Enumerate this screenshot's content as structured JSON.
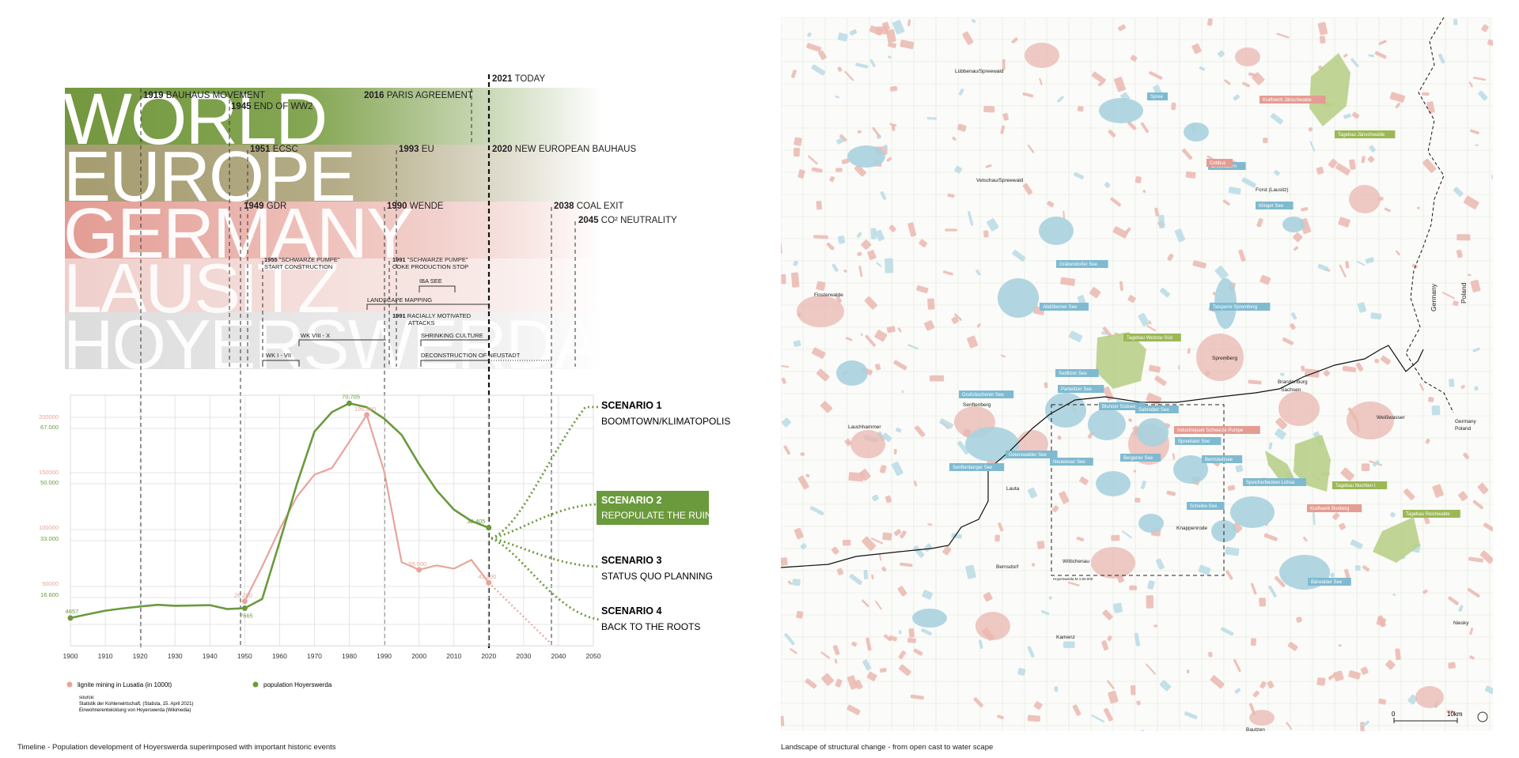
{
  "bands": [
    {
      "word": "WORLD",
      "color": "#73973f"
    },
    {
      "word": "EUROPE",
      "color": "#a59c70"
    },
    {
      "word": "GERMANY",
      "color": "#e29c93"
    },
    {
      "word": "LAUSITZ",
      "color": "#efcfcb"
    },
    {
      "word": "HOYERSWERDA",
      "color": "#dadada"
    }
  ],
  "events": [
    {
      "year": "1919",
      "label": "BAUHAUS MOVEMENT"
    },
    {
      "year": "1945",
      "label": "END OF WW2"
    },
    {
      "year": "2016",
      "label": "PARIS AGREEMENT"
    },
    {
      "year": "2021",
      "label": "TODAY"
    },
    {
      "year": "1951",
      "label": "ECSC"
    },
    {
      "year": "1993",
      "label": "EU"
    },
    {
      "year": "2020",
      "label": "NEW EUROPEAN BAUHAUS"
    },
    {
      "year": "1949",
      "label": "GDR"
    },
    {
      "year": "1990",
      "label": "WENDE"
    },
    {
      "year": "2038",
      "label": "COAL EXIT"
    },
    {
      "year": "2045",
      "label": "CO² NEUTRALITY"
    }
  ],
  "small_events": [
    {
      "year": "1955",
      "label": "\"SCHWARZE PUMPE\"",
      "line2": "START CONSTRUCTION"
    },
    {
      "year": "1991",
      "label": "\"SCHWARZE PUMPE\"",
      "line2": "COKE PRODUCTION STOP"
    },
    {
      "year": "",
      "label": "IBA SEE",
      "line2": ""
    },
    {
      "year": "",
      "label": "LANDSCAPE MAPPING",
      "line2": ""
    },
    {
      "year": "1991",
      "label": "RACIALLY MOTIVATED",
      "line2": "ATTACKS"
    },
    {
      "year": "",
      "label": "WK VIII - X",
      "line2": ""
    },
    {
      "year": "",
      "label": "SHRINKING CULTURE",
      "line2": ""
    },
    {
      "year": "",
      "label": "WK I - VII",
      "line2": ""
    },
    {
      "year": "",
      "label": "DECONSTRUCTION OF NEUSTADT",
      "line2": ""
    }
  ],
  "chart_data": {
    "type": "line",
    "x_ticks": [
      "1900",
      "1910",
      "1920",
      "1930",
      "1940",
      "1950",
      "1960",
      "1970",
      "1980",
      "1990",
      "2000",
      "2010",
      "2020",
      "2030",
      "2040",
      "2050"
    ],
    "xlim": [
      1900,
      2050
    ],
    "y_ticks_lignite": [
      "200000",
      "150000",
      "100000",
      "50000"
    ],
    "y_ticks_population": [
      "67.000",
      "50.000",
      "33.000",
      "16.600"
    ],
    "series": [
      {
        "name": "population Hoyerswerda",
        "color": "#6b9a3d",
        "x": [
          1900,
          1905,
          1910,
          1915,
          1920,
          1925,
          1930,
          1935,
          1940,
          1945,
          1950,
          1955,
          1960,
          1965,
          1970,
          1975,
          1980,
          1985,
          1990,
          1995,
          2000,
          2005,
          2010,
          2015,
          2020
        ],
        "y": [
          4657,
          5800,
          6900,
          7600,
          8200,
          8700,
          8400,
          8500,
          8600,
          7400,
          7665,
          10500,
          28000,
          46000,
          62000,
          68000,
          70705,
          69500,
          66000,
          61000,
          52000,
          44000,
          38000,
          34500,
          32405
        ],
        "labels": [
          {
            "x": 1900,
            "y": 4657,
            "text": "4657"
          },
          {
            "x": 1950,
            "y": 7665,
            "text": "7665"
          },
          {
            "x": 1980,
            "y": 70705,
            "text": "70.705"
          },
          {
            "x": 2020,
            "y": 32405,
            "text": "32.405"
          }
        ]
      },
      {
        "name": "lignite mining in Lusatia (in 1000t)",
        "color": "#e8a49b",
        "x": [
          1950,
          1955,
          1960,
          1965,
          1970,
          1975,
          1980,
          1985,
          1990,
          1995,
          2000,
          2005,
          2010,
          2015,
          2020
        ],
        "y": [
          26200,
          58000,
          92000,
          122000,
          142000,
          148000,
          172000,
          196600,
          145000,
          62000,
          55000,
          59000,
          56000,
          64000,
          43200
        ],
        "labels": [
          {
            "x": 1950,
            "y": 26200,
            "text": "26.200"
          },
          {
            "x": 1985,
            "y": 196600,
            "text": "196.600"
          },
          {
            "x": 2000,
            "y": 55000,
            "text": "55.000"
          },
          {
            "x": 2020,
            "y": 43200,
            "text": "43.200"
          }
        ]
      }
    ],
    "legend": {
      "lignite": "lignite mining in Lusatia (in 1000t)",
      "population": "population Hoyerswerda"
    }
  },
  "source": {
    "line1": "source:",
    "line2": "Statistik der Kohlenwirtschaft, (Statista, 15. April 2021)",
    "line3": "Einwohnerentwicklung von Hoyerswerda (Wikimedia)"
  },
  "scenarios": [
    {
      "num": "SCENARIO 1",
      "title": "BOOMTOWN/KLIMATOPOLIS"
    },
    {
      "num": "SCENARIO 2",
      "title": "REPOPULATE THE RUINS"
    },
    {
      "num": "SCENARIO 3",
      "title": "STATUS QUO PLANNING"
    },
    {
      "num": "SCENARIO 4",
      "title": "BACK TO THE ROOTS"
    }
  ],
  "captions": {
    "left": "Timeline - Population development of Hoyerswerda superimposed with important historic events",
    "right": "Landscape of structural change - from open cast to water scape"
  },
  "map": {
    "towns": [
      {
        "name": "Lübbenau/Spreewald"
      },
      {
        "name": "Vetschau/Spreewald"
      },
      {
        "name": "Finsterwalde"
      },
      {
        "name": "Senftenberg"
      },
      {
        "name": "Lauchhammer"
      },
      {
        "name": "Lauta"
      },
      {
        "name": "Bernsdorf"
      },
      {
        "name": "Wittichenau"
      },
      {
        "name": "Knappenrode"
      },
      {
        "name": "Spremberg"
      },
      {
        "name": "Forst (Lausitz)"
      },
      {
        "name": "Weißwasser"
      },
      {
        "name": "Kamenz"
      },
      {
        "name": "Bautzen"
      },
      {
        "name": "Niesky"
      }
    ],
    "lakes": [
      {
        "name": "Spree"
      },
      {
        "name": "Gräbendorfer See"
      },
      {
        "name": "Altdöberner See"
      },
      {
        "name": "Talsperre Spremberg"
      },
      {
        "name": "Großräschener See"
      },
      {
        "name": "Sedlitzer See"
      },
      {
        "name": "Partwitzer See"
      },
      {
        "name": "Blunoer Südsee"
      },
      {
        "name": "Sabrodter See"
      },
      {
        "name": "Spreetaler See"
      },
      {
        "name": "Senftenberger See"
      },
      {
        "name": "Geierswalder See"
      },
      {
        "name": "Neuwieser See"
      },
      {
        "name": "Bergener See"
      },
      {
        "name": "Bernsteinsee"
      },
      {
        "name": "Speicherbecken Lohsa"
      },
      {
        "name": "Scheibe-See"
      },
      {
        "name": "Bärwalder See"
      },
      {
        "name": "Klinger See"
      },
      {
        "name": "Dreiweibern"
      }
    ],
    "mines": [
      {
        "name": "Kraftwerk Jänschwalde"
      },
      {
        "name": "Tagebau Jänschwalde"
      },
      {
        "name": "Tagebau Welzow Süd"
      },
      {
        "name": "Industriepark Schwarze Pumpe"
      },
      {
        "name": "Tagebau Nochten I"
      },
      {
        "name": "Kraftwerk Boxberg"
      },
      {
        "name": "Tagebau Reichwalde"
      },
      {
        "name": "Cottbus"
      }
    ],
    "border_labels": {
      "germany": "Germany",
      "poland": "Poland",
      "brandenburg": "Brandenburg",
      "sachsen": "Sachsen",
      "germany2": "Germany",
      "poland2": "Poland"
    },
    "frame_label": "Hoyerswerda M 1:50.000",
    "scale_zero": "0",
    "scale_ten": "10km"
  }
}
